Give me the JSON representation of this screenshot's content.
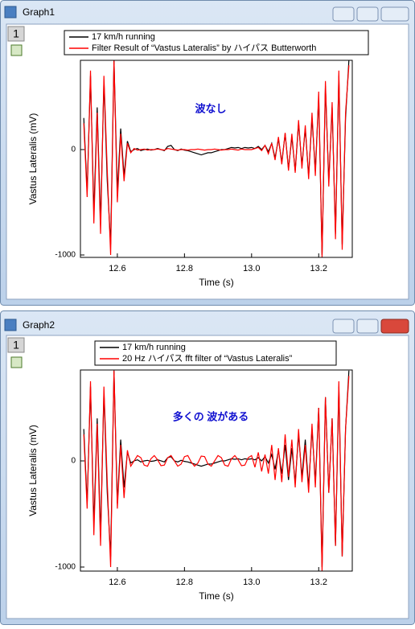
{
  "windows": [
    {
      "title": "Graph1",
      "layer": "1"
    },
    {
      "title": "Graph2",
      "layer": "1"
    }
  ],
  "chart_data": [
    {
      "type": "line",
      "annotation": "波なし",
      "x_label": "Time (s)",
      "y_label": "Vastus Lateralis (mV)",
      "xlim": [
        12.49,
        13.3
      ],
      "ylim": [
        -1023,
        847
      ],
      "xticks": [
        12.6,
        12.8,
        {
          "value": 13,
          "label": "13.0"
        },
        13.2
      ],
      "yticks": [
        0,
        -1000
      ],
      "x": [
        12.5,
        12.51,
        12.52,
        12.53,
        12.54,
        12.55,
        12.56,
        12.57,
        12.58,
        12.59,
        12.6,
        12.61,
        12.62,
        12.63,
        12.64,
        12.65,
        12.66,
        12.67,
        12.68,
        12.69,
        12.7,
        12.71,
        12.72,
        12.73,
        12.74,
        12.75,
        12.76,
        12.77,
        12.78,
        12.79,
        12.8,
        12.81,
        12.82,
        12.83,
        12.84,
        12.85,
        12.86,
        12.87,
        12.88,
        12.89,
        12.9,
        12.91,
        12.92,
        12.93,
        12.94,
        12.95,
        12.96,
        12.97,
        12.98,
        12.99,
        13.0,
        13.01,
        13.02,
        13.03,
        13.04,
        13.05,
        13.06,
        13.07,
        13.08,
        13.09,
        13.1,
        13.11,
        13.12,
        13.13,
        13.14,
        13.15,
        13.16,
        13.17,
        13.18,
        13.19,
        13.2,
        13.21,
        13.22,
        13.23,
        13.24,
        13.25,
        13.26,
        13.27,
        13.28,
        13.29
      ],
      "series": [
        {
          "name": "17 km/h running",
          "color": "#000000",
          "values": [
            300,
            -400,
            700,
            -600,
            400,
            -700,
            650,
            -300,
            -900,
            850,
            -400,
            200,
            -250,
            80,
            -20,
            0,
            10,
            -10,
            0,
            5,
            -5,
            0,
            10,
            0,
            -10,
            30,
            40,
            0,
            -10,
            5,
            -5,
            -10,
            -20,
            -30,
            -40,
            -50,
            -40,
            -30,
            -30,
            -20,
            -10,
            0,
            0,
            10,
            20,
            15,
            20,
            10,
            20,
            15,
            20,
            10,
            30,
            0,
            40,
            -20,
            60,
            -80,
            100,
            -120,
            150,
            -180,
            120,
            -200,
            250,
            -150,
            200,
            -250,
            300,
            -200,
            500,
            -1000,
            600,
            -300,
            400,
            -800,
            700,
            -900,
            300,
            850
          ]
        },
        {
          "name": "Filter Result of “Vastus Lateralis” by ハイパス Butterworth",
          "color": "#ff0000",
          "values": [
            250,
            -450,
            750,
            -700,
            350,
            -800,
            700,
            -200,
            -1000,
            850,
            -500,
            150,
            -300,
            60,
            -30,
            10,
            -5,
            0,
            5,
            -5,
            0,
            0,
            5,
            0,
            -5,
            10,
            5,
            0,
            -5,
            0,
            0,
            -5,
            0,
            0,
            5,
            0,
            -5,
            0,
            0,
            5,
            0,
            -5,
            0,
            0,
            5,
            0,
            -5,
            5,
            0,
            0,
            0,
            10,
            20,
            -10,
            40,
            -40,
            60,
            -100,
            120,
            -140,
            160,
            -200,
            150,
            -220,
            280,
            -180,
            230,
            -280,
            350,
            -250,
            550,
            -1020,
            650,
            -350,
            450,
            -850,
            750,
            -950,
            350,
            800
          ]
        }
      ]
    },
    {
      "type": "line",
      "annotation": "多くの 波がある",
      "x_label": "Time (s)",
      "y_label": "Vastus Lateralis (mV)",
      "xlim": [
        12.49,
        13.3
      ],
      "ylim": [
        -1038,
        856
      ],
      "xticks": [
        12.6,
        12.8,
        {
          "value": 13,
          "label": "13.0"
        },
        13.2
      ],
      "yticks": [
        0,
        -1000
      ],
      "x": [
        12.5,
        12.51,
        12.52,
        12.53,
        12.54,
        12.55,
        12.56,
        12.57,
        12.58,
        12.59,
        12.6,
        12.61,
        12.62,
        12.63,
        12.64,
        12.65,
        12.66,
        12.67,
        12.68,
        12.69,
        12.7,
        12.71,
        12.72,
        12.73,
        12.74,
        12.75,
        12.76,
        12.77,
        12.78,
        12.79,
        12.8,
        12.81,
        12.82,
        12.83,
        12.84,
        12.85,
        12.86,
        12.87,
        12.88,
        12.89,
        12.9,
        12.91,
        12.92,
        12.93,
        12.94,
        12.95,
        12.96,
        12.97,
        12.98,
        12.99,
        13.0,
        13.01,
        13.02,
        13.03,
        13.04,
        13.05,
        13.06,
        13.07,
        13.08,
        13.09,
        13.1,
        13.11,
        13.12,
        13.13,
        13.14,
        13.15,
        13.16,
        13.17,
        13.18,
        13.19,
        13.2,
        13.21,
        13.22,
        13.23,
        13.24,
        13.25,
        13.26,
        13.27,
        13.28,
        13.29
      ],
      "series": [
        {
          "name": "17 km/h running",
          "color": "#000000",
          "values": [
            300,
            -400,
            700,
            -600,
            400,
            -700,
            650,
            -300,
            -900,
            850,
            -400,
            200,
            -250,
            80,
            -20,
            0,
            10,
            -10,
            0,
            5,
            -5,
            0,
            10,
            0,
            -10,
            30,
            40,
            0,
            -10,
            5,
            -5,
            -10,
            -20,
            -30,
            -40,
            -50,
            -40,
            -30,
            -30,
            -20,
            -10,
            0,
            0,
            10,
            20,
            15,
            20,
            10,
            20,
            15,
            20,
            10,
            30,
            0,
            40,
            -20,
            60,
            -80,
            100,
            -120,
            150,
            -180,
            120,
            -200,
            250,
            -150,
            200,
            -250,
            300,
            -200,
            500,
            -1000,
            600,
            -300,
            400,
            -800,
            700,
            -900,
            300,
            850
          ]
        },
        {
          "name": "20 Hz ハイパス fft filter of “Vastus Lateralis”",
          "color": "#ff0000",
          "values": [
            250,
            -450,
            750,
            -700,
            350,
            -800,
            700,
            -200,
            -1000,
            850,
            -450,
            150,
            -350,
            100,
            -50,
            0,
            50,
            30,
            -40,
            -50,
            20,
            50,
            10,
            -45,
            -40,
            30,
            50,
            0,
            -50,
            -30,
            40,
            50,
            -10,
            -50,
            -20,
            45,
            40,
            -30,
            -50,
            0,
            50,
            30,
            -40,
            -50,
            20,
            50,
            10,
            -45,
            -40,
            30,
            50,
            -60,
            80,
            -100,
            60,
            -120,
            150,
            -180,
            120,
            -200,
            250,
            -150,
            200,
            -250,
            300,
            -200,
            150,
            -300,
            350,
            -250,
            500,
            -1040,
            600,
            -300,
            400,
            -800,
            750,
            -900,
            300,
            800
          ]
        }
      ]
    }
  ]
}
